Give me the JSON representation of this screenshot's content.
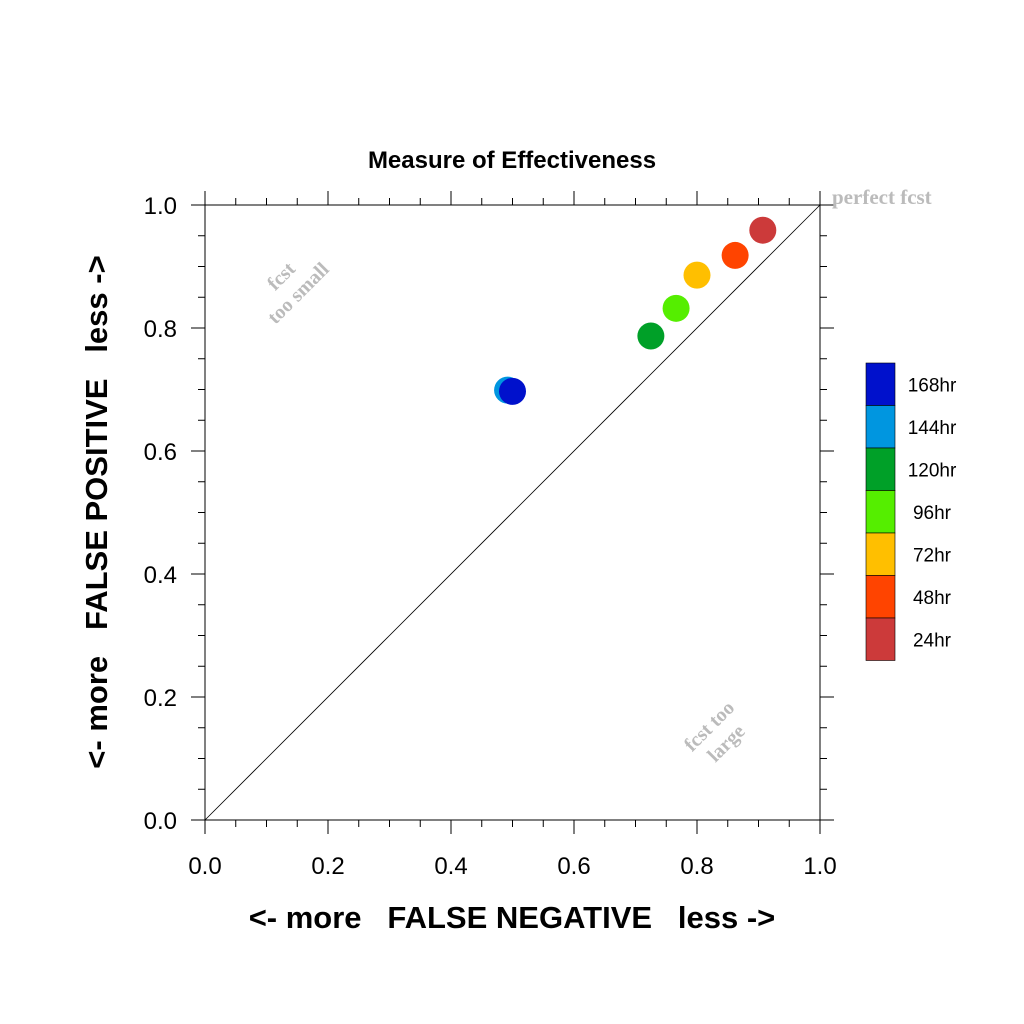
{
  "chart_data": {
    "type": "scatter",
    "title": "Measure of Effectiveness",
    "xlabel": "<- more   FALSE NEGATIVE   less ->",
    "ylabel": "<- more   FALSE POSITIVE   less ->",
    "xlim": [
      0,
      1
    ],
    "ylim": [
      0,
      1
    ],
    "xticks": [
      "0.0",
      "0.2",
      "0.4",
      "0.6",
      "0.8",
      "1.0"
    ],
    "yticks": [
      "0.0",
      "0.2",
      "0.4",
      "0.6",
      "0.8",
      "1.0"
    ],
    "xtick_values": [
      0,
      0.2,
      0.4,
      0.6,
      0.8,
      1.0
    ],
    "ytick_values": [
      0,
      0.2,
      0.4,
      0.6,
      0.8,
      1.0
    ],
    "grid": false,
    "reference_line": {
      "type": "diagonal",
      "from": [
        0,
        0
      ],
      "to": [
        1,
        1
      ]
    },
    "annotations": {
      "perfect": "perfect fcst",
      "too_small_1": "fcst",
      "too_small_2": "too small",
      "too_large_1": "fcst too",
      "too_large_2": "large"
    },
    "legend_position": "right",
    "series": [
      {
        "name": "24hr",
        "color": "#cc3a3a",
        "x": 0.907,
        "y": 0.959
      },
      {
        "name": "48hr",
        "color": "#ff4400",
        "x": 0.862,
        "y": 0.918
      },
      {
        "name": "72hr",
        "color": "#ffbf00",
        "x": 0.8,
        "y": 0.886
      },
      {
        "name": "96hr",
        "color": "#55ee00",
        "x": 0.766,
        "y": 0.832
      },
      {
        "name": "120hr",
        "color": "#00a028",
        "x": 0.725,
        "y": 0.787
      },
      {
        "name": "144hr",
        "color": "#0096e0",
        "x": 0.492,
        "y": 0.699
      },
      {
        "name": "168hr",
        "color": "#0011cc",
        "x": 0.5,
        "y": 0.697
      }
    ],
    "legend_order": [
      "168hr",
      "144hr",
      "120hr",
      "96hr",
      "72hr",
      "48hr",
      "24hr"
    ]
  }
}
